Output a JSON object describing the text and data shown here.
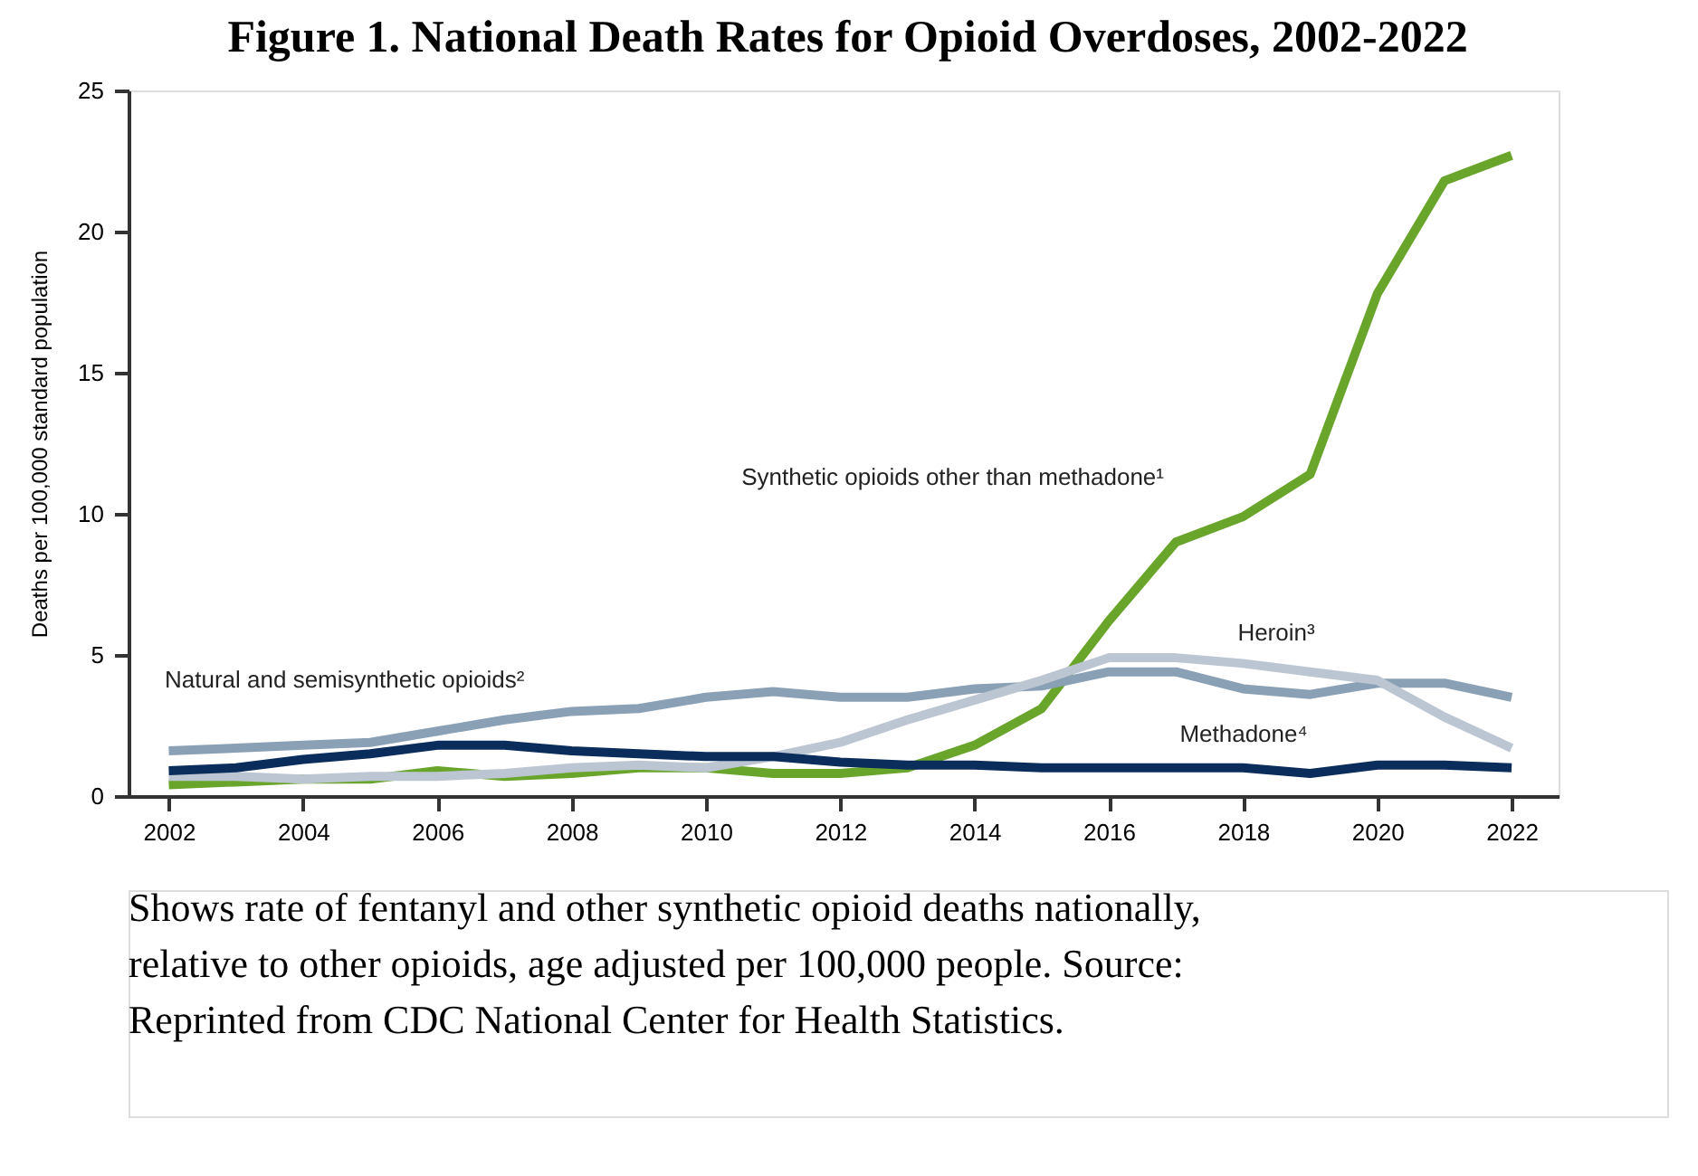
{
  "chart_data": {
    "type": "line",
    "title": "Figure 1. National Death Rates for Opioid Overdoses, 2002-2022",
    "ylabel": "Deaths per 100,000 standard population",
    "x": [
      2002,
      2003,
      2004,
      2005,
      2006,
      2007,
      2008,
      2009,
      2010,
      2011,
      2012,
      2013,
      2014,
      2015,
      2016,
      2017,
      2018,
      2019,
      2020,
      2021,
      2022
    ],
    "series": [
      {
        "name": "Synthetic opioids other than methadone¹",
        "color": "#6aa52b",
        "values": [
          0.4,
          0.5,
          0.6,
          0.6,
          0.9,
          0.7,
          0.8,
          1.0,
          1.0,
          0.8,
          0.8,
          1.0,
          1.8,
          3.1,
          6.2,
          9.0,
          9.9,
          11.4,
          17.8,
          21.8,
          22.7
        ]
      },
      {
        "name": "Natural and semisynthetic opioids²",
        "color": "#8aa0b5",
        "values": [
          1.6,
          1.7,
          1.8,
          1.9,
          2.3,
          2.7,
          3.0,
          3.1,
          3.5,
          3.7,
          3.5,
          3.5,
          3.8,
          3.9,
          4.4,
          4.4,
          3.8,
          3.6,
          4.0,
          4.0,
          3.5
        ]
      },
      {
        "name": "Heroin³",
        "color": "#bcc6d3",
        "values": [
          0.7,
          0.7,
          0.6,
          0.7,
          0.7,
          0.8,
          1.0,
          1.1,
          1.0,
          1.4,
          1.9,
          2.7,
          3.4,
          4.1,
          4.9,
          4.9,
          4.7,
          4.4,
          4.1,
          2.8,
          1.7
        ]
      },
      {
        "name": "Methadone⁴",
        "color": "#0b2d5c",
        "values": [
          0.9,
          1.0,
          1.3,
          1.5,
          1.8,
          1.8,
          1.6,
          1.5,
          1.4,
          1.4,
          1.2,
          1.1,
          1.1,
          1.0,
          1.0,
          1.0,
          1.0,
          0.8,
          1.1,
          1.1,
          1.0
        ]
      }
    ],
    "xlim": [
      2001.4,
      2022.7
    ],
    "xticks": [
      2002,
      2004,
      2006,
      2008,
      2010,
      2012,
      2014,
      2016,
      2018,
      2020,
      2022
    ],
    "ylim": [
      0,
      25
    ],
    "yticks": [
      0,
      5,
      10,
      15,
      20,
      25
    ],
    "grid": false,
    "legend": false,
    "line_style": "solid",
    "marker": "none",
    "annotations": [
      "Shows rate of fentanyl and other synthetic opioid deaths nationally, relative to other opioids, age adjusted per 100,000 people. Source: Reprinted from CDC National Center for Health Statistics."
    ]
  }
}
